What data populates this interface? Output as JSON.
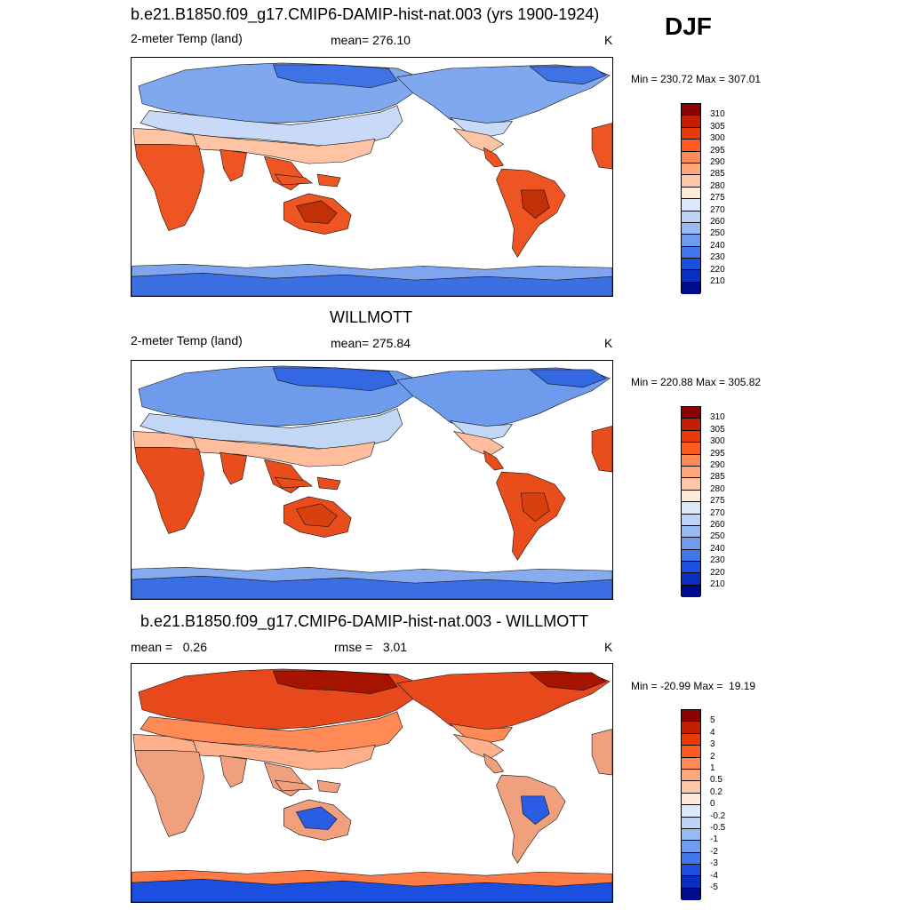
{
  "season": "DJF",
  "panels": [
    {
      "title": "b.e21.B1850.f09_g17.CMIP6-DAMIP-hist-nat.003 (yrs 1900-1924)",
      "left_label": "2-meter Temp (land)",
      "center_label": "mean= 276.10",
      "right_label": "K",
      "minmax": "Min = 230.72 Max = 307.01",
      "colorbar": {
        "labels": [
          "310",
          "305",
          "300",
          "295",
          "290",
          "285",
          "280",
          "275",
          "270",
          "260",
          "250",
          "240",
          "230",
          "220",
          "210"
        ],
        "colors": [
          "#8b0000",
          "#c41e00",
          "#e83a06",
          "#ff5a1f",
          "#ff8a55",
          "#ffa77a",
          "#ffc7a8",
          "#ffe9d8",
          "#dde9fb",
          "#bcd3f6",
          "#97baf2",
          "#6f9ced",
          "#4176e8",
          "#1a4fe0",
          "#0a2fc0",
          "#000b8c"
        ]
      },
      "regions": {
        "northern_land": "#7fa8ee",
        "high_arctic": "#3f72e4",
        "mid_lat": "#c8daf7",
        "subtropics": "#ffc4a4",
        "tropics": "#ef5522",
        "hot_core": "#c2300a",
        "antarctica": "#3c70e2",
        "antarctic_coast": "#7ea5ee"
      }
    },
    {
      "title": "WILLMOTT",
      "left_label": "2-meter Temp (land)",
      "center_label": "mean= 275.84",
      "right_label": "K",
      "minmax": "Min = 220.88 Max = 305.82",
      "colorbar": {
        "labels": [
          "310",
          "305",
          "300",
          "295",
          "290",
          "285",
          "280",
          "275",
          "270",
          "260",
          "250",
          "240",
          "230",
          "220",
          "210"
        ],
        "colors": [
          "#8b0000",
          "#c41e00",
          "#e83a06",
          "#ff5a1f",
          "#ff8a55",
          "#ffa77a",
          "#ffc7a8",
          "#ffe9d8",
          "#dde9fb",
          "#bcd3f6",
          "#97baf2",
          "#6f9ced",
          "#4176e8",
          "#1a4fe0",
          "#0a2fc0",
          "#000b8c"
        ]
      },
      "regions": {
        "northern_land": "#6e9bec",
        "high_arctic": "#3468e2",
        "mid_lat": "#c2d6f6",
        "subtropics": "#ffbd9c",
        "tropics": "#ea4d1c",
        "hot_core": "#d8400e",
        "antarctica": "#3a6ee2",
        "antarctic_coast": "#86acef"
      }
    },
    {
      "title": "b.e21.B1850.f09_g17.CMIP6-DAMIP-hist-nat.003 - WILLMOTT",
      "left_label": "mean =   0.26",
      "center_label": "rmse =   3.01",
      "right_label": "K",
      "minmax": "Min = -20.99 Max =  19.19",
      "colorbar": {
        "labels": [
          "5",
          "4",
          "3",
          "2",
          "1",
          "0.5",
          "0.2",
          "0",
          "-0.2",
          "-0.5",
          "-1",
          "-2",
          "-3",
          "-4",
          "-5"
        ],
        "colors": [
          "#8b0000",
          "#c41e00",
          "#e83a06",
          "#ff5a1f",
          "#ff8a55",
          "#ffa77a",
          "#ffc7a8",
          "#ffe9d8",
          "#dde9fb",
          "#bcd3f6",
          "#97baf2",
          "#6f9ced",
          "#4176e8",
          "#1a4fe0",
          "#0a2fc0",
          "#000b8c"
        ]
      },
      "regions": {
        "northern_land": "#e8491c",
        "high_arctic": "#a61400",
        "mid_lat": "#ff8a55",
        "subtropics": "#ffb08a",
        "tropics": "#f0a07c",
        "hot_core": "#2b5ce4",
        "antarctica": "#1a4fe0",
        "antarctic_coast": "#ff7a44"
      }
    }
  ]
}
